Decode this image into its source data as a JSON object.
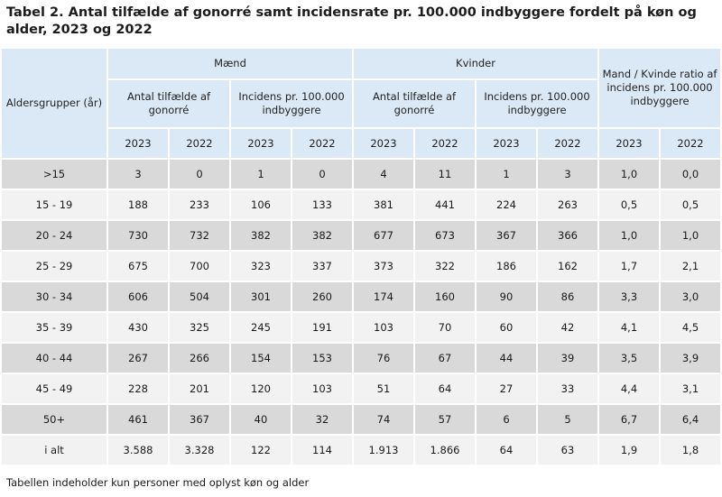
{
  "title": "Tabel 2. Antal tilfælde af gonorré samt incidensrate pr. 100.000 indbyggere fordelt på køn og alder, 2023 og 2022",
  "headers": {
    "age_group": "Aldersgrupper (år)",
    "men": "Mænd",
    "women": "Kvinder",
    "ratio": "Mand / Kvinde ratio af incidens pr. 100.000 indbyggere",
    "count": "Antal tilfælde af gonorré",
    "incidence": "Incidens pr. 100.000 indbyggere",
    "year_a": "2023",
    "year_b": "2022"
  },
  "rows": [
    {
      "age": ">15",
      "m_n23": "3",
      "m_n22": "0",
      "m_i23": "1",
      "m_i22": "0",
      "k_n23": "4",
      "k_n22": "11",
      "k_i23": "1",
      "k_i22": "3",
      "r23": "1,0",
      "r22": "0,0"
    },
    {
      "age": "15 - 19",
      "m_n23": "188",
      "m_n22": "233",
      "m_i23": "106",
      "m_i22": "133",
      "k_n23": "381",
      "k_n22": "441",
      "k_i23": "224",
      "k_i22": "263",
      "r23": "0,5",
      "r22": "0,5"
    },
    {
      "age": "20 - 24",
      "m_n23": "730",
      "m_n22": "732",
      "m_i23": "382",
      "m_i22": "382",
      "k_n23": "677",
      "k_n22": "673",
      "k_i23": "367",
      "k_i22": "366",
      "r23": "1,0",
      "r22": "1,0"
    },
    {
      "age": "25 - 29",
      "m_n23": "675",
      "m_n22": "700",
      "m_i23": "323",
      "m_i22": "337",
      "k_n23": "373",
      "k_n22": "322",
      "k_i23": "186",
      "k_i22": "162",
      "r23": "1,7",
      "r22": "2,1"
    },
    {
      "age": "30 - 34",
      "m_n23": "606",
      "m_n22": "504",
      "m_i23": "301",
      "m_i22": "260",
      "k_n23": "174",
      "k_n22": "160",
      "k_i23": "90",
      "k_i22": "86",
      "r23": "3,3",
      "r22": "3,0"
    },
    {
      "age": "35 - 39",
      "m_n23": "430",
      "m_n22": "325",
      "m_i23": "245",
      "m_i22": "191",
      "k_n23": "103",
      "k_n22": "70",
      "k_i23": "60",
      "k_i22": "42",
      "r23": "4,1",
      "r22": "4,5"
    },
    {
      "age": "40 - 44",
      "m_n23": "267",
      "m_n22": "266",
      "m_i23": "154",
      "m_i22": "153",
      "k_n23": "76",
      "k_n22": "67",
      "k_i23": "44",
      "k_i22": "39",
      "r23": "3,5",
      "r22": "3,9"
    },
    {
      "age": "45 - 49",
      "m_n23": "228",
      "m_n22": "201",
      "m_i23": "120",
      "m_i22": "103",
      "k_n23": "51",
      "k_n22": "64",
      "k_i23": "27",
      "k_i22": "33",
      "r23": "4,4",
      "r22": "3,1"
    },
    {
      "age": "50+",
      "m_n23": "461",
      "m_n22": "367",
      "m_i23": "40",
      "m_i22": "32",
      "k_n23": "74",
      "k_n22": "57",
      "k_i23": "6",
      "k_i22": "5",
      "r23": "6,7",
      "r22": "6,4"
    },
    {
      "age": "i alt",
      "m_n23": "3.588",
      "m_n22": "3.328",
      "m_i23": "122",
      "m_i22": "114",
      "k_n23": "1.913",
      "k_n22": "1.866",
      "k_i23": "64",
      "k_i22": "63",
      "r23": "1,9",
      "r22": "1,8"
    }
  ],
  "footnote": "Tabellen indeholder kun personer med oplyst køn og alder",
  "colors": {
    "header_bg": "#dbe9f6",
    "row_gray": "#d9d9d9",
    "row_light": "#f2f2f2"
  }
}
